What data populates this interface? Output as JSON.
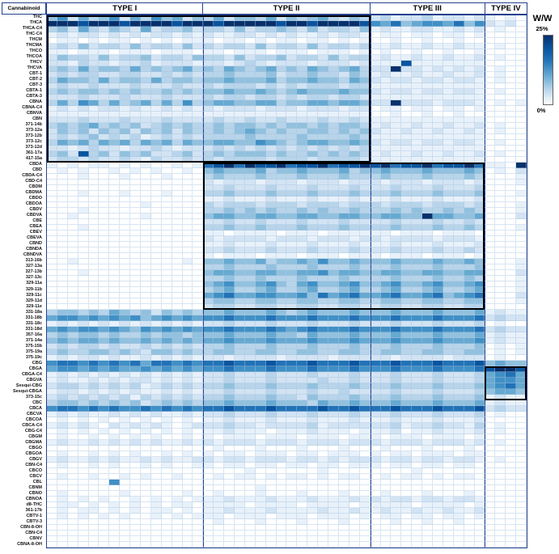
{
  "header": {
    "corner_label": "Cannabinoid"
  },
  "colorbar": {
    "title": "W/W",
    "max_label": "25%",
    "min_label": "0%"
  },
  "colors": {
    "frame_blue": "#26418f",
    "heat_low": "#ffffff",
    "heat_high": "#08306b",
    "box_outline": "#000000"
  },
  "chart_data": {
    "type": "heatmap",
    "title": "Cannabinoid content (% w/w) per sample, grouped by chemotype",
    "unit": "% w/w",
    "value_range": [
      0,
      25
    ],
    "legend": {
      "title": "W/W",
      "max": "25%",
      "min": "0%",
      "position": "top-right"
    },
    "col_groups": [
      {
        "label": "TYPE I",
        "cols": 15
      },
      {
        "label": "TYPE II",
        "cols": 16
      },
      {
        "label": "TYPE III",
        "cols": 11
      },
      {
        "label": "TYPE IV",
        "cols": 4
      }
    ],
    "values_encoding": "Each row object holds one digit per sample column within groups I/II/III/IV. Digit d (0-9) is the estimated concentration d/9 x 25 % w/w; 0 = white, 9 = darkest blue of the colorscale.",
    "colorscale": [
      "#ffffff",
      "#e8f1fa",
      "#d2e3f3",
      "#b7d4ea",
      "#92c1de",
      "#66a9d1",
      "#4090c5",
      "#2272b6",
      "#0a549e",
      "#08306b"
    ],
    "rows": [
      {
        "label": "THC",
        "I": "462534625364524",
        "II": "3524435243453243",
        "III": "23122312212",
        "IV": "1010"
      },
      {
        "label": "THCA",
        "I": "999899989999899",
        "II": "9899999899899998",
        "III": "65745665746",
        "IV": "2120"
      },
      {
        "label": "THCA-C4",
        "I": "342532432523342",
        "II": "3324233432423324",
        "III": "12112211212",
        "IV": "0100"
      },
      {
        "label": "THC-C4",
        "I": "121221212122121",
        "II": "2112212121121221",
        "III": "01101101101",
        "IV": "0000"
      },
      {
        "label": "THCM",
        "I": "011010110101011",
        "II": "1011010110110101",
        "III": "00100100100",
        "IV": "0000"
      },
      {
        "label": "THCMA",
        "I": "232423324233242",
        "II": "3233242332423323",
        "III": "11211211211",
        "IV": "0100"
      },
      {
        "label": "THCO",
        "I": "110111011101110",
        "II": "1101110111011101",
        "III": "01001001001",
        "IV": "0000"
      },
      {
        "label": "THCOA",
        "I": "243324233423324",
        "II": "3324233423324233",
        "III": "12112112112",
        "IV": "0100"
      },
      {
        "label": "THCV",
        "I": "221322122312221",
        "II": "2212321222122212",
        "III": "11181111111",
        "IV": "0000"
      },
      {
        "label": "THCVA",
        "I": "343534435343453",
        "II": "4354345343543453",
        "III": "22922121212",
        "IV": "0100"
      },
      {
        "label": "CBT-1",
        "I": "232332233223232",
        "II": "3343334233433243",
        "III": "12112112112",
        "IV": "0100"
      },
      {
        "label": "CBT-2",
        "I": "354435344353443",
        "II": "4454445344544354",
        "III": "21221221221",
        "IV": "0100"
      },
      {
        "label": "CBT-3",
        "I": "232232223222322",
        "II": "3233323232333233",
        "III": "11111111111",
        "IV": "0000"
      },
      {
        "label": "CBTA-1",
        "I": "343443434334343",
        "II": "4454454345444544",
        "III": "21221221221",
        "IV": "0100"
      },
      {
        "label": "CBTA-3",
        "I": "222322232223222",
        "II": "3233233232332332",
        "III": "11111111111",
        "IV": "0000"
      },
      {
        "label": "CBNA",
        "I": "353653534535363",
        "II": "4554455344554554",
        "III": "22922212221",
        "IV": "0101"
      },
      {
        "label": "CBNA-C4",
        "I": "121212212112121",
        "II": "2122212221222122",
        "III": "01101101101",
        "IV": "0000"
      },
      {
        "label": "CBNVA",
        "I": "111111111111111",
        "II": "1111111111111111",
        "III": "00100100100",
        "IV": "0000"
      },
      {
        "label": "CBN",
        "I": "222322232223222",
        "II": "2322322322232232",
        "III": "11111111111",
        "IV": "0000"
      },
      {
        "label": "371-14b",
        "I": "343453434234343",
        "II": "3434434344343443",
        "III": "12112112112",
        "IV": "0100"
      },
      {
        "label": "373-12a",
        "I": "243424342434243",
        "II": "3434543433443434",
        "III": "21121121121",
        "IV": "0100"
      },
      {
        "label": "373-12b",
        "I": "232342323123232",
        "II": "3333433334333343",
        "III": "11111111111",
        "IV": "0000"
      },
      {
        "label": "373-12c",
        "I": "354535453545354",
        "II": "4554465434554454",
        "III": "21221221221",
        "IV": "0100"
      },
      {
        "label": "373-12d",
        "I": "221232212232122",
        "II": "2323232323232323",
        "III": "11111111111",
        "IV": "0000"
      },
      {
        "label": "361-17a",
        "I": "342834243422342",
        "II": "3434443433434343",
        "III": "12112112112",
        "IV": "0100"
      },
      {
        "label": "417-15a",
        "I": "233232232132232",
        "II": "3233332333233332",
        "III": "11111111111",
        "IV": "0000"
      },
      {
        "label": "CBDA",
        "I": "101011010100101",
        "II": "7897988978897889",
        "III": "89788978897",
        "IV": "1109"
      },
      {
        "label": "CBD",
        "I": "010100101010010",
        "II": "4544453445444534",
        "III": "45444544454",
        "IV": "0102"
      },
      {
        "label": "CBDA-C4",
        "I": "000100010001000",
        "II": "3433343334333433",
        "III": "34333433343",
        "IV": "0001"
      },
      {
        "label": "CBD-C4",
        "I": "000000000000000",
        "II": "2122212221222122",
        "III": "21222122212",
        "IV": "0001"
      },
      {
        "label": "CBDM",
        "I": "000000000000000",
        "II": "2232223222322232",
        "III": "22322232223",
        "IV": "0000"
      },
      {
        "label": "CBDMA",
        "I": "000100010001000",
        "II": "3343334333433343",
        "III": "33433343334",
        "IV": "0001"
      },
      {
        "label": "CBDO",
        "I": "000000000000000",
        "II": "1121112111211121",
        "III": "11211121112",
        "IV": "0000"
      },
      {
        "label": "CBDOA",
        "I": "000000000100000",
        "II": "3233323332333233",
        "III": "32333233323",
        "IV": "0001"
      },
      {
        "label": "CBDV",
        "I": "000100000000000",
        "II": "3343434334343343",
        "III": "33434334343",
        "IV": "0001"
      },
      {
        "label": "CBDVA",
        "I": "001000000100000",
        "II": "4554455445544554",
        "III": "45544955445",
        "IV": "0002"
      },
      {
        "label": "CBE",
        "I": "000000000000000",
        "II": "2232232223222322",
        "III": "22322232232",
        "IV": "0000"
      },
      {
        "label": "CBEA",
        "I": "000100000000000",
        "II": "3343343334333433",
        "III": "33433343343",
        "IV": "0001"
      },
      {
        "label": "CBEV",
        "I": "000000000000000",
        "II": "1101111011101111",
        "III": "11011101110",
        "IV": "0000"
      },
      {
        "label": "CBEVA",
        "I": "000000000000000",
        "II": "2122221222122212",
        "III": "21222212221",
        "IV": "0000"
      },
      {
        "label": "CBND",
        "I": "000000000000000",
        "II": "1121112111211121",
        "III": "11211121112",
        "IV": "0000"
      },
      {
        "label": "CBNDA",
        "I": "000000000000000",
        "II": "2232223222322232",
        "III": "22322232232",
        "IV": "0000"
      },
      {
        "label": "CBNDVA",
        "I": "000000000000000",
        "II": "1011101110111011",
        "III": "10111011101",
        "IV": "0000"
      },
      {
        "label": "313-16b",
        "I": "001000000000010",
        "II": "4454453445464454",
        "III": "44544454454",
        "IV": "0001"
      },
      {
        "label": "327-13a",
        "I": "000000000000000",
        "II": "3343334333433343",
        "III": "33433343334",
        "IV": "0001"
      },
      {
        "label": "327-13b",
        "I": "000100000000000",
        "II": "4554455445564554",
        "III": "45544554455",
        "IV": "0002"
      },
      {
        "label": "327-13c",
        "I": "000000000000000",
        "II": "3343343334333433",
        "III": "33433343343",
        "IV": "0001"
      },
      {
        "label": "329-11a",
        "I": "000000000000000",
        "II": "4564456435644564",
        "III": "45644564456",
        "IV": "0001"
      },
      {
        "label": "329-11b",
        "I": "000000000000000",
        "II": "3453345334533453",
        "III": "34533453345",
        "IV": "0001"
      },
      {
        "label": "329-11c",
        "I": "000000000000000",
        "II": "5675566556475675",
        "III": "56755674567",
        "IV": "0002"
      },
      {
        "label": "329-11d",
        "I": "000000000000000",
        "II": "3443344334433443",
        "III": "34433443344",
        "IV": "0001"
      },
      {
        "label": "329-11e",
        "I": "000000000000000",
        "II": "2332233223322332",
        "III": "23322332233",
        "IV": "0000"
      },
      {
        "label": "331-18a",
        "I": "344343543424343",
        "II": "4454445434544454",
        "III": "44544454445",
        "IV": "1211"
      },
      {
        "label": "331-18b",
        "I": "566565656456565",
        "II": "6676667666766676",
        "III": "66766676667",
        "IV": "2322"
      },
      {
        "label": "331-18c",
        "I": "121212121212121",
        "II": "2232223222322232",
        "III": "22322232223",
        "IV": "0100"
      },
      {
        "label": "331-18d",
        "I": "565665654656565",
        "II": "6676667656766676",
        "III": "66766676667",
        "IV": "2322"
      },
      {
        "label": "357-16a",
        "I": "343443433434434",
        "II": "4454445443544454",
        "III": "44544454445",
        "IV": "1211"
      },
      {
        "label": "371-14a",
        "I": "454554544545454",
        "II": "5565556555655565",
        "III": "55655565556",
        "IV": "1211"
      },
      {
        "label": "375-15b",
        "I": "232332322323232",
        "II": "3343334333433343",
        "III": "33433343334",
        "IV": "0101"
      },
      {
        "label": "375-19a",
        "I": "343344343244343",
        "II": "3443344334433443",
        "III": "34433443344",
        "IV": "0101"
      },
      {
        "label": "375-19c",
        "I": "121221211212121",
        "II": "2212222122221222",
        "III": "22122221222",
        "IV": "0100"
      },
      {
        "label": "CBG",
        "I": "677676767577676",
        "II": "7787778777877787",
        "III": "77877787778",
        "IV": "4544"
      },
      {
        "label": "CBGA",
        "I": "566565655656565",
        "II": "6676667666766676",
        "III": "66766676667",
        "IV": "8998"
      },
      {
        "label": "CBGA-C4",
        "I": "121212121212121",
        "II": "2232223222322232",
        "III": "22322232223",
        "IV": "5675"
      },
      {
        "label": "CBGVA",
        "I": "121121212212121",
        "II": "2232223222232232",
        "III": "22322232223",
        "IV": "5665"
      },
      {
        "label": "Sesqui-CBG",
        "I": "233232323123232",
        "II": "3343334333433343",
        "III": "33433343334",
        "IV": "5675"
      },
      {
        "label": "Sesqui-CBGA",
        "I": "122121212112121",
        "II": "2232223222322322",
        "III": "22322232223",
        "IV": "4554"
      },
      {
        "label": "373-15c",
        "I": "232323231323232",
        "II": "3343334332433343",
        "III": "33433343334",
        "IV": "1211"
      },
      {
        "label": "CBC",
        "I": "344343434234343",
        "II": "4454445444354454",
        "III": "44544454445",
        "IV": "1211"
      },
      {
        "label": "CBCA",
        "I": "677676766767676",
        "II": "7787778777787787",
        "III": "77877787778",
        "IV": "2322"
      },
      {
        "label": "CBCVA",
        "I": "121211212121121",
        "II": "2232223222322232",
        "III": "22322232223",
        "IV": "0100"
      },
      {
        "label": "CBCOA",
        "I": "010101010101010",
        "II": "1121112111211121",
        "III": "11211121112",
        "IV": "0000"
      },
      {
        "label": "CBCA-C4",
        "I": "121210212121012",
        "II": "2232212222312222",
        "III": "22312232213",
        "IV": "0100"
      },
      {
        "label": "CBG-C4",
        "I": "010101010101010",
        "II": "1121110111211101",
        "III": "11201121112",
        "IV": "0100"
      },
      {
        "label": "CBGM",
        "I": "010010101010010",
        "II": "1011101110111011",
        "III": "10111011101",
        "IV": "0000"
      },
      {
        "label": "CBGMA",
        "I": "121121212121121",
        "II": "2122212221222122",
        "III": "21222122212",
        "IV": "0100"
      },
      {
        "label": "CBGO",
        "I": "000000000000000",
        "II": "0100010001000100",
        "III": "01000100010",
        "IV": "0000"
      },
      {
        "label": "CBGOA",
        "I": "010010101001010",
        "II": "1011011101101110",
        "III": "10110111011",
        "IV": "0000"
      },
      {
        "label": "CBGV",
        "I": "121121211212112",
        "II": "2122122212212122",
        "III": "21221221221",
        "IV": "0100"
      },
      {
        "label": "CBN-C4",
        "I": "010010100101001",
        "II": "1011011011011011",
        "III": "10110110110",
        "IV": "0000"
      },
      {
        "label": "CBCO",
        "I": "000000000000000",
        "II": "0000100000010000",
        "III": "00001000000",
        "IV": "0000"
      },
      {
        "label": "CBCV",
        "I": "010010010100100",
        "II": "0101101011010110",
        "III": "01011010110",
        "IV": "0000"
      },
      {
        "label": "CBL",
        "I": "000000600000000",
        "II": "0000000000000000",
        "III": "00000000000",
        "IV": "0000"
      },
      {
        "label": "CBNM",
        "I": "000000000000000",
        "II": "0000010000000000",
        "III": "00000000000",
        "IV": "0000"
      },
      {
        "label": "CBNO",
        "I": "010000010000010",
        "II": "0100010001000100",
        "III": "01000100010",
        "IV": "0000"
      },
      {
        "label": "CBNOA",
        "I": "010101001010101",
        "II": "1121112111211121",
        "III": "21221221221",
        "IV": "0000"
      },
      {
        "label": "d8-THC",
        "I": "011010101010110",
        "II": "1111011110111101",
        "III": "11110111101",
        "IV": "0000"
      },
      {
        "label": "361-17b",
        "I": "010110101011010",
        "II": "1121112111121121",
        "III": "12112112112",
        "IV": "0000"
      },
      {
        "label": "CBTV-1",
        "I": "010101010010101",
        "II": "1101110111011101",
        "III": "01101101101",
        "IV": "0000"
      },
      {
        "label": "CBTV-3",
        "I": "000000000000000",
        "II": "0100010001000100",
        "III": "00100100100",
        "IV": "0000"
      },
      {
        "label": "CBN-8-OH",
        "I": "000000000000000",
        "II": "0000000000000000",
        "III": "00000000000",
        "IV": "0000"
      },
      {
        "label": "CBN-C4",
        "I": "000000000000000",
        "II": "0000000000000000",
        "III": "00000000000",
        "IV": "0000"
      },
      {
        "label": "CBNV",
        "I": "000000000000000",
        "II": "0000000000000000",
        "III": "00000000000",
        "IV": "0000"
      },
      {
        "label": "CBNA-8-OH",
        "I": "000000000000000",
        "II": "0000000000000000",
        "III": "00000000000",
        "IV": "0000"
      }
    ],
    "highlight_boxes": [
      {
        "name": "thc-dominant-region",
        "row_start": 0,
        "row_count": 26,
        "col_start": 0,
        "col_count": 31
      },
      {
        "name": "cbd-dominant-region",
        "row_start": 26,
        "row_count": 26,
        "col_start": 15,
        "col_count": 27
      },
      {
        "name": "cbg-dominant-region",
        "row_start": 62,
        "row_count": 6,
        "col_start": 42,
        "col_count": 4
      }
    ]
  }
}
